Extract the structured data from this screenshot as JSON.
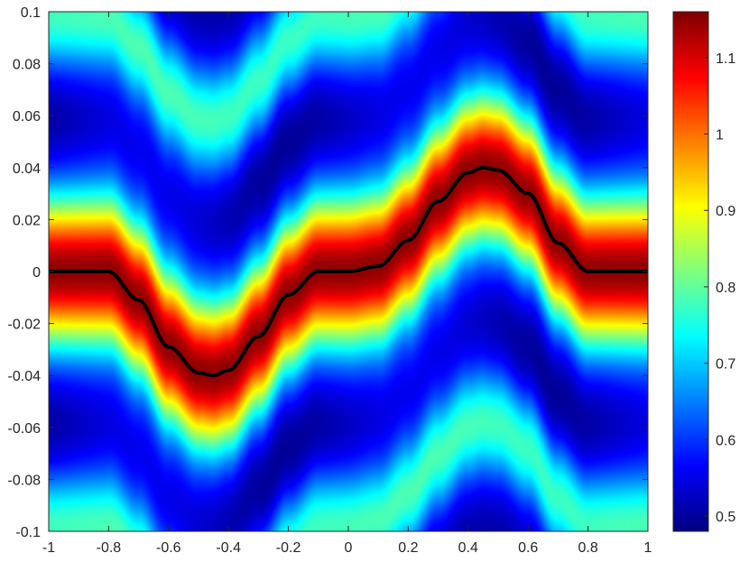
{
  "chart_data": {
    "type": "heatmap",
    "title": "",
    "xlabel": "",
    "ylabel": "",
    "xlim": [
      -1,
      1
    ],
    "ylim": [
      -0.1,
      0.1
    ],
    "colormap": "jet",
    "color_range": [
      0.48,
      1.16
    ],
    "x_ticks": [
      "-1",
      "-0.8",
      "-0.6",
      "-0.4",
      "-0.2",
      "0",
      "0.2",
      "0.4",
      "0.6",
      "0.8",
      "1"
    ],
    "y_ticks": [
      "-0.1",
      "-0.08",
      "-0.06",
      "-0.04",
      "-0.02",
      "0",
      "0.02",
      "0.04",
      "0.06",
      "0.08",
      "0.1"
    ],
    "colorbar_ticks": [
      "0.5",
      "0.6",
      "0.7",
      "0.8",
      "0.9",
      "1",
      "1.1"
    ],
    "colorbar_tick_values": [
      0.5,
      0.6,
      0.7,
      0.8,
      0.9,
      1.0,
      1.1
    ],
    "field_description": "peak ~1.15 along the curve, decaying with perpendicular distance; secondary cyan bands (~0.75-0.8) at distance ~0.1 from the curve",
    "curve": {
      "color": "#000000",
      "points": [
        [
          -1.0,
          0.0
        ],
        [
          -0.8,
          0.0
        ],
        [
          -0.7,
          -0.011
        ],
        [
          -0.6,
          -0.029
        ],
        [
          -0.5,
          -0.039
        ],
        [
          -0.45,
          -0.04
        ],
        [
          -0.4,
          -0.038
        ],
        [
          -0.3,
          -0.025
        ],
        [
          -0.2,
          -0.009
        ],
        [
          -0.1,
          0.0
        ],
        [
          0.0,
          0.0
        ],
        [
          0.1,
          0.002
        ],
        [
          0.2,
          0.012
        ],
        [
          0.3,
          0.027
        ],
        [
          0.4,
          0.038
        ],
        [
          0.45,
          0.04
        ],
        [
          0.5,
          0.039
        ],
        [
          0.6,
          0.03
        ],
        [
          0.7,
          0.011
        ],
        [
          0.8,
          0.0
        ],
        [
          1.0,
          0.0
        ]
      ]
    }
  },
  "colors": {
    "axis": "#262626",
    "background": "#ffffff"
  }
}
